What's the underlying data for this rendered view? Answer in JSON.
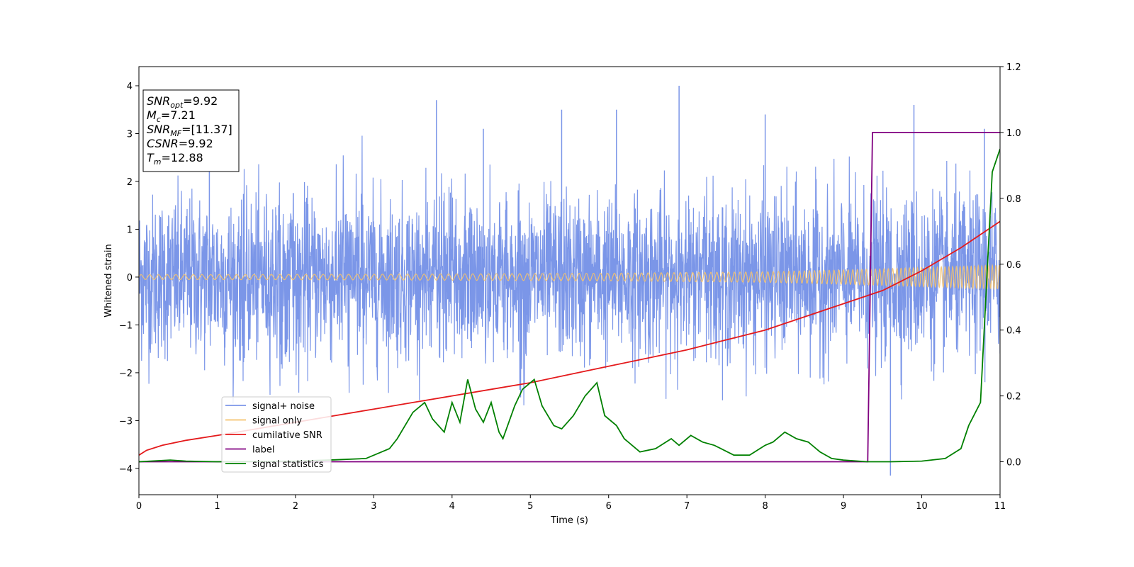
{
  "chart_data": {
    "type": "line",
    "xlabel": "Time (s)",
    "ylabel": "Whitened strain",
    "xlim": [
      0,
      11
    ],
    "ylim": [
      -4.55,
      4.4
    ],
    "y2lim": [
      -0.1,
      1.2
    ],
    "x_ticks": [
      "0",
      "1",
      "2",
      "3",
      "4",
      "5",
      "6",
      "7",
      "8",
      "9",
      "10",
      "11"
    ],
    "y_ticks": [
      "−4",
      "−3",
      "−2",
      "−1",
      "0",
      "1",
      "2",
      "3",
      "4"
    ],
    "y2_ticks": [
      "0.0",
      "0.2",
      "0.4",
      "0.6",
      "0.8",
      "1.0",
      "1.2"
    ],
    "grid": false,
    "legend_position": "lower-left",
    "info_box": {
      "snr_opt": {
        "base": "SNR",
        "sub": "opt",
        "value": "=9.92"
      },
      "mc": {
        "base": "M",
        "sub": "c",
        "value": "=7.21"
      },
      "snr_mf": {
        "base": "SNR",
        "sub": "MF",
        "value": "=[11.37]"
      },
      "csnr": {
        "base": "CSNR",
        "sub": "",
        "value": "=9.92"
      },
      "tm": {
        "base": "T",
        "sub": "m",
        "value": "=12.88"
      }
    },
    "series": [
      {
        "name": "signal+ noise",
        "color": "#7b96e8",
        "axis": "left",
        "envelope": {
          "typical_abs_max": 2.0,
          "extreme_peaks": [
            [
              0.9,
              2.5
            ],
            [
              3.8,
              3.7
            ],
            [
              4.4,
              3.1
            ],
            [
              5.4,
              3.5
            ],
            [
              6.1,
              3.5
            ],
            [
              6.9,
              4.0
            ],
            [
              8.0,
              3.4
            ],
            [
              9.6,
              -4.15
            ],
            [
              9.9,
              3.6
            ],
            [
              10.8,
              3.1
            ]
          ]
        }
      },
      {
        "name": "signal only",
        "color": "#f5c26b",
        "axis": "left",
        "amplitude": [
          [
            0,
            0.05
          ],
          [
            3,
            0.06
          ],
          [
            6,
            0.08
          ],
          [
            8,
            0.11
          ],
          [
            9,
            0.15
          ],
          [
            10,
            0.2
          ],
          [
            11,
            0.25
          ]
        ]
      },
      {
        "name": "cumilative SNR",
        "color": "#e41a1c",
        "axis": "right",
        "x": [
          0,
          0.1,
          0.3,
          0.6,
          1,
          1.5,
          2,
          2.5,
          3,
          3.5,
          4,
          4.5,
          5,
          5.5,
          6,
          6.5,
          7,
          7.5,
          8,
          8.5,
          9,
          9.5,
          10,
          10.5,
          11
        ],
        "y": [
          0.02,
          0.035,
          0.05,
          0.065,
          0.08,
          0.1,
          0.12,
          0.14,
          0.16,
          0.18,
          0.2,
          0.22,
          0.24,
          0.265,
          0.29,
          0.315,
          0.34,
          0.37,
          0.4,
          0.44,
          0.48,
          0.52,
          0.58,
          0.65,
          0.73
        ]
      },
      {
        "name": "label",
        "color": "#800080",
        "axis": "right",
        "x": [
          0,
          9.31,
          9.37,
          11
        ],
        "y": [
          0,
          0,
          1,
          1
        ]
      },
      {
        "name": "signal statistics",
        "color": "#008000",
        "axis": "right",
        "x": [
          0,
          0.4,
          0.6,
          1,
          2,
          2.5,
          2.9,
          3.2,
          3.3,
          3.5,
          3.65,
          3.75,
          3.9,
          4.0,
          4.1,
          4.2,
          4.3,
          4.4,
          4.5,
          4.6,
          4.65,
          4.8,
          4.9,
          5.05,
          5.15,
          5.3,
          5.4,
          5.55,
          5.7,
          5.85,
          5.95,
          6.1,
          6.2,
          6.4,
          6.6,
          6.8,
          6.9,
          7.05,
          7.2,
          7.35,
          7.6,
          7.8,
          8.0,
          8.1,
          8.25,
          8.4,
          8.55,
          8.7,
          8.85,
          9.0,
          9.3,
          9.6,
          10.0,
          10.3,
          10.5,
          10.6,
          10.75,
          10.9,
          11.0
        ],
        "y": [
          0.0,
          0.005,
          0.002,
          0.0,
          0.002,
          0.006,
          0.01,
          0.04,
          0.07,
          0.15,
          0.18,
          0.13,
          0.09,
          0.18,
          0.12,
          0.25,
          0.16,
          0.12,
          0.18,
          0.09,
          0.07,
          0.17,
          0.22,
          0.25,
          0.17,
          0.11,
          0.1,
          0.14,
          0.2,
          0.24,
          0.14,
          0.11,
          0.07,
          0.03,
          0.04,
          0.07,
          0.05,
          0.08,
          0.06,
          0.05,
          0.02,
          0.02,
          0.05,
          0.06,
          0.09,
          0.07,
          0.06,
          0.03,
          0.01,
          0.005,
          0.0,
          0.0,
          0.002,
          0.01,
          0.04,
          0.11,
          0.18,
          0.88,
          0.95
        ]
      }
    ]
  }
}
